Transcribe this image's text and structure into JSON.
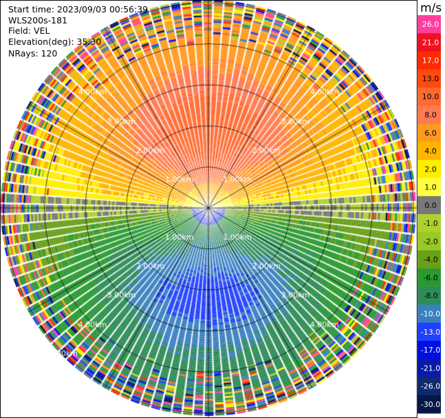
{
  "header": {
    "start_time": "Start time: 2023/09/03 00:56:39",
    "site": "WLS200s-181",
    "field": "Field: VEL",
    "elevation": "Elevation(deg): 35.30",
    "nrays": "NRays: 120"
  },
  "chart_data": {
    "type": "heatmap",
    "subtype": "polar-ppi",
    "field": "VEL",
    "n_rays": 120,
    "range_rings_km": [
      1,
      2,
      3,
      4,
      5
    ],
    "ring_labels": [
      "1.00km",
      "2.00km",
      "3.00km",
      "4.00km",
      "5.00km"
    ],
    "colorbar": {
      "unit": "m/s",
      "tick_labels": [
        "26.0",
        "21.0",
        "17.0",
        "13.0",
        "10.0",
        "8.0",
        "6.0",
        "4.0",
        "2.0",
        "1.0",
        "0.0",
        "-1.0",
        "-2.0",
        "-4.0",
        "-6.0",
        "-8.0",
        "-10.0",
        "-13.0",
        "-17.0",
        "-21.0",
        "-26.0",
        "-30.0"
      ],
      "colors": [
        "#ff3fa0",
        "#ef1020",
        "#ff2a00",
        "#ff4a10",
        "#ff6a30",
        "#ff7a50",
        "#ff9a20",
        "#ffb400",
        "#ffee00",
        "#ffff40",
        "#787878",
        "#b0d030",
        "#98c828",
        "#68a018",
        "#2a9a30",
        "#2e8c58",
        "#3a80c0",
        "#2040ff",
        "#0010e0",
        "#0a1aa8",
        "#102a70",
        "#06184a"
      ]
    }
  }
}
